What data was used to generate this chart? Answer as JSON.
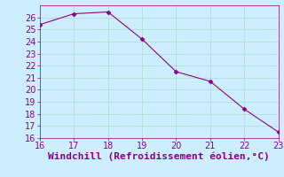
{
  "x": [
    16,
    17,
    18,
    19,
    20,
    21,
    22,
    23
  ],
  "y": [
    25.4,
    26.3,
    26.45,
    24.2,
    21.5,
    20.7,
    18.4,
    16.5
  ],
  "line_color": "#8b008b",
  "marker": "D",
  "marker_size": 2.5,
  "xlabel": "Windchill (Refroidissement éolien,°C)",
  "xlabel_color": "#8b008b",
  "xlim": [
    16,
    23
  ],
  "ylim": [
    16,
    27
  ],
  "xticks": [
    16,
    17,
    18,
    19,
    20,
    21,
    22,
    23
  ],
  "yticks": [
    16,
    17,
    18,
    19,
    20,
    21,
    22,
    23,
    24,
    25,
    26
  ],
  "background_color": "#cceeff",
  "grid_color": "#aaddcc",
  "tick_label_color": "#8b008b",
  "font_size": 7,
  "xlabel_fontsize": 8
}
